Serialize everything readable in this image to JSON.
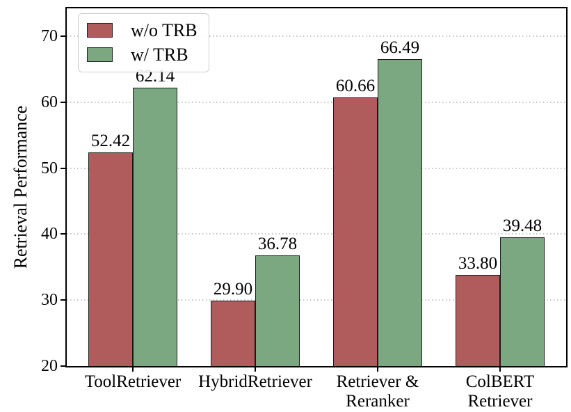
{
  "chart_data": {
    "type": "bar",
    "title": "",
    "xlabel": "",
    "ylabel": "Retrieval Performance",
    "categories": [
      "ToolRetriever",
      "HybridRetriever",
      "Retriever &\nReranker",
      "ColBERT\nRetriever"
    ],
    "series": [
      {
        "name": "w/o TRB",
        "color": "#b15c5c",
        "values": [
          52.42,
          29.9,
          60.66,
          33.8
        ]
      },
      {
        "name": "w/ TRB",
        "color": "#7ca881",
        "values": [
          62.14,
          36.78,
          66.49,
          39.48
        ]
      }
    ],
    "yticks": [
      20,
      30,
      40,
      50,
      60,
      70
    ],
    "ylim": [
      20,
      74.2
    ],
    "grid": {
      "axis": "y",
      "style": "dotted",
      "color": "#c4c4c4"
    },
    "bar_edge_color": "#1a1a1a",
    "axis_color": "#000000",
    "value_label_decimals": 2,
    "legend": {
      "position": "upper left"
    }
  }
}
